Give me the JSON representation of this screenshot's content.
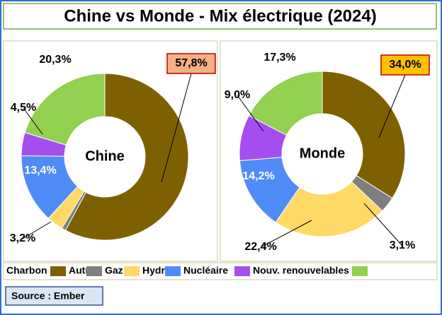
{
  "title": "Chine vs Monde - Mix électrique (2024)",
  "source": "Source : Ember",
  "chart_data": [
    {
      "type": "donut",
      "title": "Chine",
      "categories": [
        "Charbon",
        "Autre",
        "Gaz",
        "Hydro",
        "Nucléaire",
        "Nouv. renouvelables"
      ],
      "values": [
        57.8,
        0.8,
        3.2,
        13.4,
        4.5,
        20.3
      ],
      "value_labels": [
        "57,8%",
        null,
        "3,2%",
        "13,4%",
        "4,5%",
        "20,3%"
      ],
      "colors": [
        "#7f6000",
        "#7f7f7f",
        "#ffd966",
        "#4f8cf7",
        "#a64df0",
        "#92d050"
      ],
      "highlight_color": "#f4b183"
    },
    {
      "type": "donut",
      "title": "Monde",
      "categories": [
        "Charbon",
        "Autre",
        "Gaz",
        "Hydro",
        "Nucléaire",
        "Nouv. renouvelables"
      ],
      "values": [
        34.0,
        3.1,
        22.4,
        14.2,
        9.0,
        17.3
      ],
      "value_labels": [
        "34,0%",
        "3,1%",
        "22,4%",
        "14,2%",
        "9,0%",
        "17,3%"
      ],
      "colors": [
        "#7f6000",
        "#7f7f7f",
        "#ffd966",
        "#4f8cf7",
        "#a64df0",
        "#92d050"
      ],
      "highlight_color": "#ffc000"
    }
  ]
}
